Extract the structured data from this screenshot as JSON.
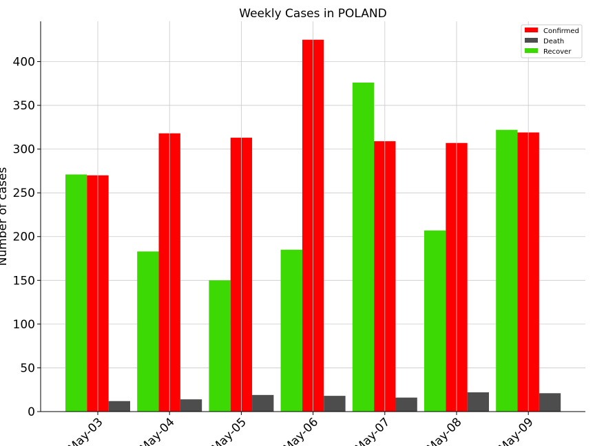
{
  "chart_data": {
    "type": "bar",
    "title": "Weekly Cases in POLAND",
    "xlabel": "",
    "ylabel": "Number of cases",
    "categories": [
      "May-03",
      "May-04",
      "May-05",
      "May-06",
      "May-07",
      "May-08",
      "May-09"
    ],
    "series": [
      {
        "name": "Recover",
        "color": "#3dd905",
        "values": [
          271,
          183,
          150,
          185,
          376,
          207,
          322
        ]
      },
      {
        "name": "Confirmed",
        "color": "#ff0000",
        "values": [
          270,
          318,
          313,
          425,
          309,
          307,
          319
        ]
      },
      {
        "name": "Death",
        "color": "#4d4d4d",
        "values": [
          12,
          14,
          19,
          18,
          16,
          22,
          21
        ]
      }
    ],
    "legend_order": [
      "Confirmed",
      "Death",
      "Recover"
    ],
    "ylim": [
      0,
      446
    ],
    "yticks": [
      0,
      50,
      100,
      150,
      200,
      250,
      300,
      350,
      400
    ],
    "grid": true,
    "legend_position": "top-right"
  }
}
